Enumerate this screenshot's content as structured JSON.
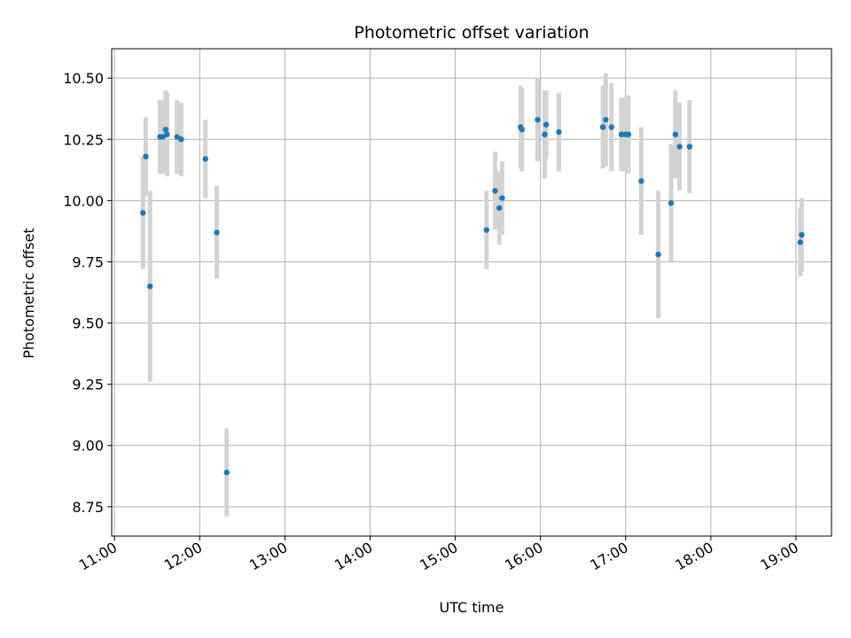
{
  "chart_data": {
    "type": "scatter",
    "title": "Photometric offset variation",
    "xlabel": "UTC time",
    "ylabel": "Photometric offset",
    "x_unit": "UTC hours",
    "xlim": [
      "10:58",
      "19:25"
    ],
    "ylim": [
      8.63,
      10.62
    ],
    "x_ticks": [
      "11:00",
      "12:00",
      "13:00",
      "14:00",
      "15:00",
      "16:00",
      "17:00",
      "18:00",
      "19:00"
    ],
    "y_ticks": [
      "8.75",
      "9.00",
      "9.25",
      "9.50",
      "9.75",
      "10.00",
      "10.25",
      "10.50"
    ],
    "grid": true,
    "marker_color": "#1f77b4",
    "errorbar_color": "#d3d3d3",
    "points": [
      {
        "x": "11:20",
        "y": 9.95,
        "err": 0.23
      },
      {
        "x": "11:22",
        "y": 10.18,
        "err": 0.16
      },
      {
        "x": "11:25",
        "y": 9.65,
        "err": 0.39
      },
      {
        "x": "11:32",
        "y": 10.26,
        "err": 0.15
      },
      {
        "x": "11:34",
        "y": 10.26,
        "err": 0.15
      },
      {
        "x": "11:36",
        "y": 10.29,
        "err": 0.16
      },
      {
        "x": "11:37",
        "y": 10.27,
        "err": 0.17
      },
      {
        "x": "11:44",
        "y": 10.26,
        "err": 0.15
      },
      {
        "x": "11:47",
        "y": 10.25,
        "err": 0.15
      },
      {
        "x": "12:04",
        "y": 10.17,
        "err": 0.16
      },
      {
        "x": "12:12",
        "y": 9.87,
        "err": 0.19
      },
      {
        "x": "12:19",
        "y": 8.89,
        "err": 0.18
      },
      {
        "x": "15:22",
        "y": 9.88,
        "err": 0.16
      },
      {
        "x": "15:28",
        "y": 10.04,
        "err": 0.16
      },
      {
        "x": "15:31",
        "y": 9.97,
        "err": 0.15
      },
      {
        "x": "15:33",
        "y": 10.01,
        "err": 0.15
      },
      {
        "x": "15:46",
        "y": 10.3,
        "err": 0.17
      },
      {
        "x": "15:47",
        "y": 10.29,
        "err": 0.17
      },
      {
        "x": "15:58",
        "y": 10.33,
        "err": 0.17
      },
      {
        "x": "16:03",
        "y": 10.27,
        "err": 0.18
      },
      {
        "x": "16:04",
        "y": 10.31,
        "err": 0.14
      },
      {
        "x": "16:13",
        "y": 10.28,
        "err": 0.16
      },
      {
        "x": "16:44",
        "y": 10.3,
        "err": 0.17
      },
      {
        "x": "16:46",
        "y": 10.33,
        "err": 0.19
      },
      {
        "x": "16:50",
        "y": 10.3,
        "err": 0.18
      },
      {
        "x": "16:57",
        "y": 10.27,
        "err": 0.15
      },
      {
        "x": "17:00",
        "y": 10.27,
        "err": 0.15
      },
      {
        "x": "17:02",
        "y": 10.27,
        "err": 0.16
      },
      {
        "x": "17:11",
        "y": 10.08,
        "err": 0.22
      },
      {
        "x": "17:23",
        "y": 9.78,
        "err": 0.26
      },
      {
        "x": "17:32",
        "y": 9.99,
        "err": 0.24
      },
      {
        "x": "17:35",
        "y": 10.27,
        "err": 0.18
      },
      {
        "x": "17:38",
        "y": 10.22,
        "err": 0.18
      },
      {
        "x": "17:45",
        "y": 10.22,
        "err": 0.19
      },
      {
        "x": "19:03",
        "y": 9.83,
        "err": 0.14
      },
      {
        "x": "19:04",
        "y": 9.86,
        "err": 0.15
      }
    ]
  }
}
